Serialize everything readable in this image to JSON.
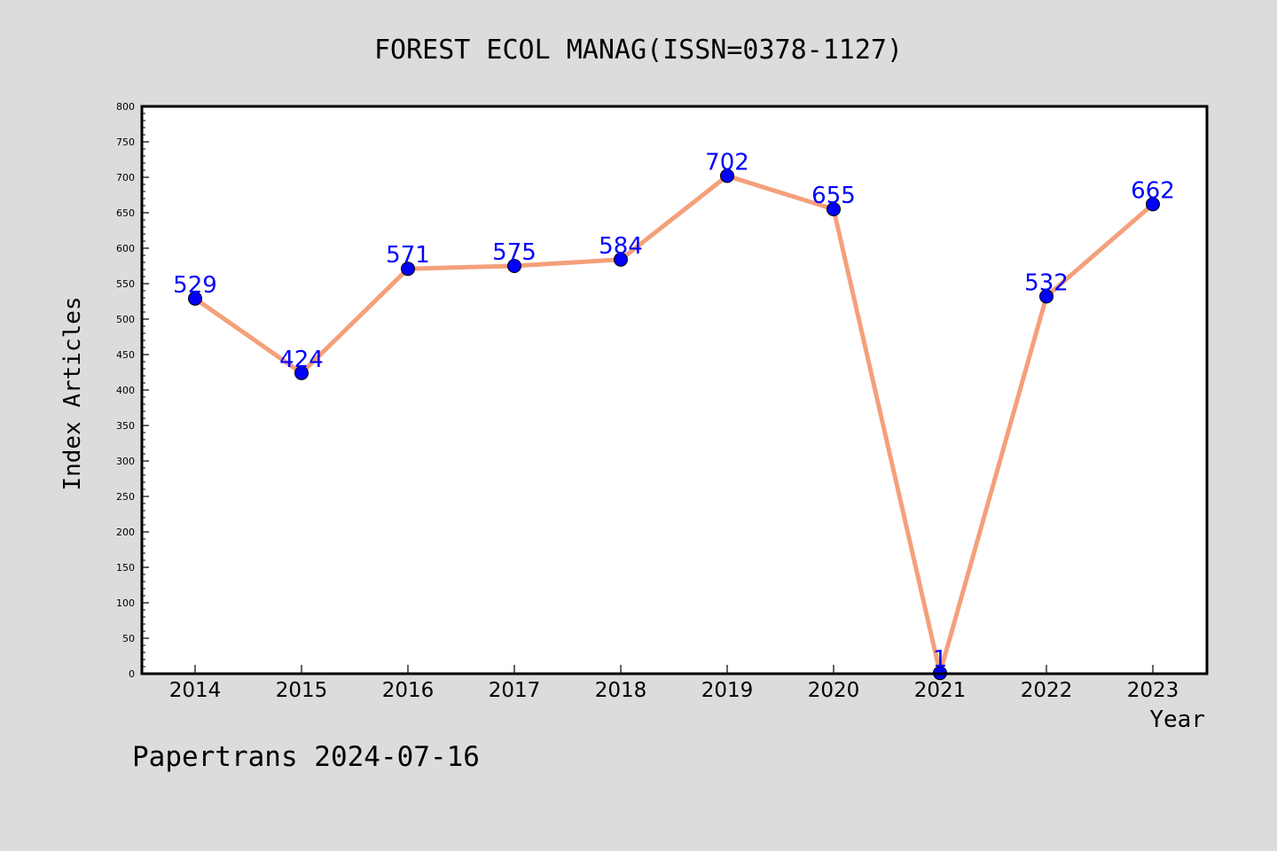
{
  "chart_data": {
    "type": "line",
    "title": "FOREST ECOL MANAG(ISSN=0378-1127)",
    "xlabel": "Year",
    "ylabel": "Index Articles",
    "footer": "Papertrans 2024-07-16",
    "categories": [
      "2014",
      "2015",
      "2016",
      "2017",
      "2018",
      "2019",
      "2020",
      "2021",
      "2022",
      "2023"
    ],
    "series": [
      {
        "values": [
          529,
          424,
          571,
          575,
          584,
          702,
          655,
          1,
          532,
          662
        ]
      }
    ],
    "ylim": [
      0,
      800
    ],
    "yticks": [
      0,
      50,
      100,
      150,
      200,
      250,
      300,
      350,
      400,
      450,
      500,
      550,
      600,
      650,
      700,
      750,
      800
    ],
    "grid": false,
    "data_labels": true,
    "colors": {
      "background": "#dcdcdc",
      "plot_background": "#ffffff",
      "line": "#f4a07a",
      "marker": "#0000ff",
      "data_label": "#0000ff",
      "text": "#000000"
    }
  }
}
